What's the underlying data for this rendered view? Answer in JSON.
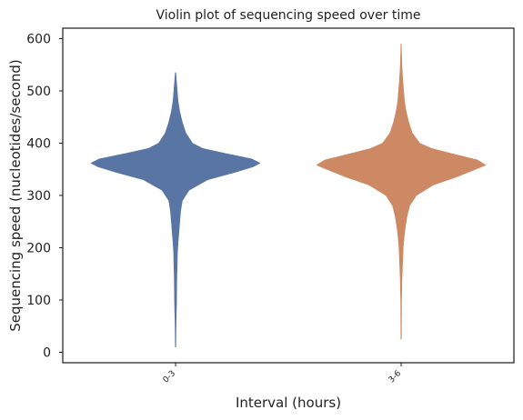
{
  "chart_data": {
    "type": "violin",
    "title": "Violin plot of sequencing speed over time",
    "xlabel": "Interval (hours)",
    "ylabel": "Sequencing speed (nucleotides/second)",
    "categories": [
      "0-3",
      "3-6"
    ],
    "ylim": [
      -20,
      620
    ],
    "yticks": [
      0,
      100,
      200,
      300,
      400,
      500,
      600
    ],
    "grid": false,
    "colors": [
      "#5975a4",
      "#cc8963"
    ],
    "violins": [
      {
        "category": "0-3",
        "min": 10,
        "max": 535,
        "median": 362,
        "profile": [
          [
            10,
            0.003
          ],
          [
            60,
            0.006
          ],
          [
            80,
            0.01
          ],
          [
            100,
            0.012
          ],
          [
            130,
            0.014
          ],
          [
            150,
            0.016
          ],
          [
            170,
            0.02
          ],
          [
            190,
            0.022
          ],
          [
            210,
            0.03
          ],
          [
            230,
            0.04
          ],
          [
            250,
            0.05
          ],
          [
            270,
            0.06
          ],
          [
            290,
            0.08
          ],
          [
            310,
            0.16
          ],
          [
            330,
            0.38
          ],
          [
            345,
            0.72
          ],
          [
            355,
            0.92
          ],
          [
            362,
            1.0
          ],
          [
            370,
            0.9
          ],
          [
            380,
            0.6
          ],
          [
            390,
            0.32
          ],
          [
            400,
            0.2
          ],
          [
            420,
            0.12
          ],
          [
            440,
            0.08
          ],
          [
            460,
            0.05
          ],
          [
            480,
            0.03
          ],
          [
            500,
            0.02
          ],
          [
            520,
            0.01
          ],
          [
            535,
            0.003
          ]
        ]
      },
      {
        "category": "3-6",
        "min": 25,
        "max": 590,
        "median": 358,
        "profile": [
          [
            25,
            0.003
          ],
          [
            100,
            0.005
          ],
          [
            120,
            0.008
          ],
          [
            140,
            0.01
          ],
          [
            160,
            0.015
          ],
          [
            180,
            0.02
          ],
          [
            200,
            0.025
          ],
          [
            220,
            0.035
          ],
          [
            240,
            0.05
          ],
          [
            260,
            0.07
          ],
          [
            280,
            0.1
          ],
          [
            300,
            0.18
          ],
          [
            320,
            0.38
          ],
          [
            335,
            0.65
          ],
          [
            350,
            0.88
          ],
          [
            358,
            1.0
          ],
          [
            368,
            0.9
          ],
          [
            380,
            0.6
          ],
          [
            390,
            0.36
          ],
          [
            400,
            0.22
          ],
          [
            420,
            0.13
          ],
          [
            440,
            0.09
          ],
          [
            460,
            0.06
          ],
          [
            480,
            0.04
          ],
          [
            500,
            0.03
          ],
          [
            520,
            0.02
          ],
          [
            540,
            0.012
          ],
          [
            560,
            0.007
          ],
          [
            590,
            0.002
          ]
        ]
      }
    ]
  }
}
